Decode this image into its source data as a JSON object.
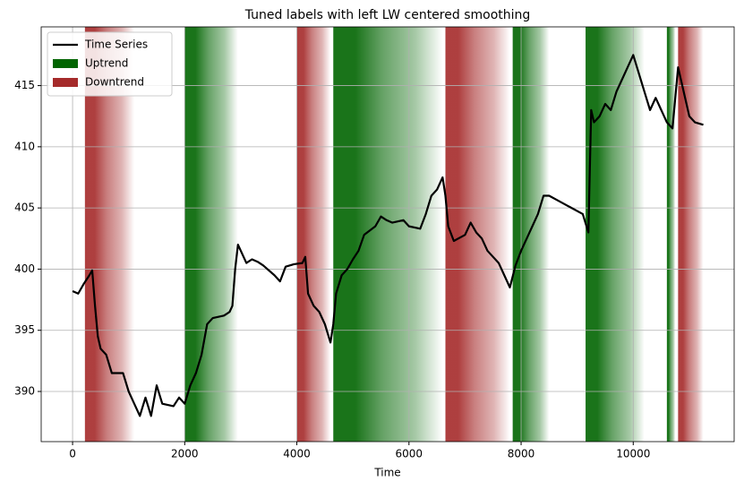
{
  "chart_data": {
    "type": "line",
    "title": "Tuned labels with left LW centered smoothing",
    "xlabel": "Time",
    "x": [
      0,
      100,
      200,
      300,
      350,
      400,
      450,
      500,
      600,
      700,
      900,
      1000,
      1100,
      1200,
      1300,
      1400,
      1500,
      1600,
      1800,
      1900,
      2000,
      2100,
      2200,
      2300,
      2400,
      2500,
      2700,
      2800,
      2850,
      2900,
      2950,
      3000,
      3100,
      3200,
      3300,
      3400,
      3600,
      3700,
      3800,
      3950,
      4100,
      4150,
      4200,
      4300,
      4400,
      4500,
      4600,
      4650,
      4700,
      4800,
      4900,
      5000,
      5100,
      5200,
      5400,
      5500,
      5600,
      5700,
      5900,
      6000,
      6200,
      6300,
      6400,
      6500,
      6600,
      6650,
      6700,
      6800,
      7000,
      7100,
      7200,
      7300,
      7400,
      7600,
      7700,
      7800,
      7900,
      8000,
      8100,
      8200,
      8300,
      8400,
      8500,
      8700,
      8900,
      9100,
      9200,
      9250,
      9300,
      9400,
      9500,
      9600,
      9700,
      9800,
      9900,
      10000,
      10100,
      10200,
      10300,
      10400,
      10500,
      10600,
      10700,
      10800,
      10900,
      11000,
      11100,
      11250
    ],
    "series": [
      {
        "name": "Time Series",
        "color": "#000000",
        "values": [
          398.2,
          398,
          398.8,
          399.5,
          399.9,
          397,
          394.5,
          393.5,
          393,
          391.5,
          391.5,
          390,
          389,
          388,
          389.5,
          388,
          390.5,
          389,
          388.8,
          389.5,
          389,
          390.5,
          391.5,
          393,
          395.5,
          396,
          396.2,
          396.5,
          397,
          400,
          402,
          401.5,
          400.5,
          400.8,
          400.6,
          400.3,
          399.5,
          399,
          400.2,
          400.4,
          400.5,
          401,
          398,
          397,
          396.5,
          395.5,
          394,
          395.5,
          398,
          399.5,
          400,
          400.8,
          401.5,
          402.8,
          403.5,
          404.3,
          404,
          403.8,
          404,
          403.5,
          403.3,
          404.5,
          406,
          406.5,
          407.5,
          406,
          403.5,
          402.3,
          402.8,
          403.8,
          403,
          402.5,
          401.5,
          400.5,
          399.5,
          398.5,
          400.3,
          401.5,
          402.5,
          403.5,
          404.5,
          406,
          406,
          405.5,
          405,
          404.5,
          403,
          413,
          412,
          412.5,
          413.5,
          413,
          414.5,
          415.5,
          416.5,
          417.5,
          416,
          414.5,
          413,
          414,
          413,
          412,
          411.5,
          416.5,
          414.5,
          412.5,
          412,
          411.8
        ]
      }
    ],
    "regions": [
      {
        "name": "Uptrend",
        "color": "#006400",
        "spans": [
          [
            2000,
            2950
          ],
          [
            4650,
            6600
          ],
          [
            7850,
            8500
          ],
          [
            9150,
            10200
          ],
          [
            10600,
            10750
          ]
        ]
      },
      {
        "name": "Downtrend",
        "color": "#a52a2a",
        "spans": [
          [
            220,
            1100
          ],
          [
            4000,
            4600
          ],
          [
            6650,
            7800
          ],
          [
            10800,
            11250
          ]
        ]
      }
    ],
    "xlim": [
      -560,
      11800
    ],
    "ylim": [
      385.9,
      419.8
    ],
    "xticks": [
      0,
      2000,
      4000,
      6000,
      8000,
      10000
    ],
    "yticks": [
      390,
      395,
      400,
      405,
      410,
      415
    ],
    "grid": true,
    "legend": "upper left"
  }
}
